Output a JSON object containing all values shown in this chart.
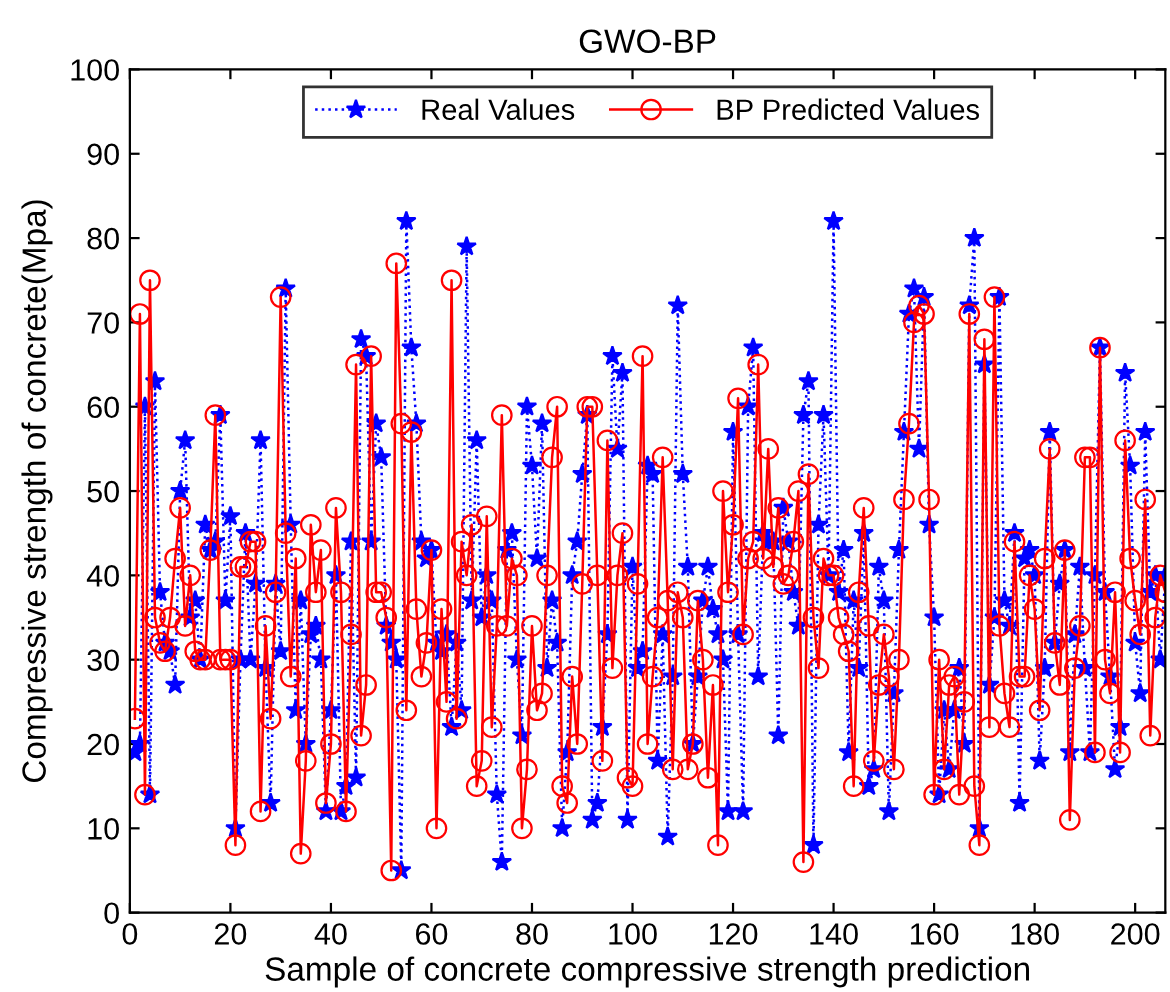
{
  "chart_data": {
    "type": "line",
    "title": "GWO-BP",
    "xlabel": "Sample of concrete compressive strength prediction",
    "ylabel": "Compressive strength of concrete(Mpa)",
    "x": [
      1,
      2,
      3,
      4,
      5,
      6,
      7,
      8,
      9,
      10,
      11,
      12,
      13,
      14,
      15,
      16,
      17,
      18,
      19,
      20,
      21,
      22,
      23,
      24,
      25,
      26,
      27,
      28,
      29,
      30,
      31,
      32,
      33,
      34,
      35,
      36,
      37,
      38,
      39,
      40,
      41,
      42,
      43,
      44,
      45,
      46,
      47,
      48,
      49,
      50,
      51,
      52,
      53,
      54,
      55,
      56,
      57,
      58,
      59,
      60,
      61,
      62,
      63,
      64,
      65,
      66,
      67,
      68,
      69,
      70,
      71,
      72,
      73,
      74,
      75,
      76,
      77,
      78,
      79,
      80,
      81,
      82,
      83,
      84,
      85,
      86,
      87,
      88,
      89,
      90,
      91,
      92,
      93,
      94,
      95,
      96,
      97,
      98,
      99,
      100,
      101,
      102,
      103,
      104,
      105,
      106,
      107,
      108,
      109,
      110,
      111,
      112,
      113,
      114,
      115,
      116,
      117,
      118,
      119,
      120,
      121,
      122,
      123,
      124,
      125,
      126,
      127,
      128,
      129,
      130,
      131,
      132,
      133,
      134,
      135,
      136,
      137,
      138,
      139,
      140,
      141,
      142,
      143,
      144,
      145,
      146,
      147,
      148,
      149,
      150,
      151,
      152,
      153,
      154,
      155,
      156,
      157,
      158,
      159,
      160,
      161,
      162,
      163,
      164,
      165,
      166,
      167,
      168,
      169,
      170,
      171,
      172,
      173,
      174,
      175,
      176,
      177,
      178,
      179,
      180,
      181,
      182,
      183,
      184,
      185,
      186,
      187,
      188,
      189,
      190,
      191,
      192,
      193,
      194,
      195,
      196,
      197,
      198,
      199,
      200,
      201,
      202,
      203,
      204,
      205,
      206
    ],
    "series": [
      {
        "name": "Real Values",
        "color": "#0000ff",
        "marker": "star",
        "line_style": "dotted",
        "values": [
          19,
          20,
          60,
          14,
          63,
          38,
          32,
          31,
          27,
          50,
          56,
          35,
          37,
          30,
          46,
          43,
          44,
          59,
          37,
          47,
          10,
          30,
          45,
          30,
          39,
          56,
          29,
          13,
          39,
          31,
          74,
          46,
          24,
          37,
          20,
          33,
          34,
          30,
          12,
          24,
          40,
          12,
          15,
          44,
          16,
          68,
          66,
          44,
          58,
          54,
          34,
          32,
          30,
          5,
          82,
          67,
          58,
          44,
          42,
          43,
          32,
          31,
          33,
          22,
          32,
          24,
          79,
          37,
          56,
          35,
          40,
          37,
          14,
          6,
          43,
          45,
          30,
          21,
          60,
          53,
          42,
          58,
          29,
          37,
          32,
          10,
          19,
          40,
          44,
          52,
          59,
          11,
          13,
          22,
          33,
          66,
          55,
          64,
          11,
          41,
          29,
          31,
          53,
          52,
          18,
          33,
          9,
          28,
          72,
          52,
          41,
          20,
          28,
          37,
          41,
          36,
          33,
          30,
          12,
          57,
          33,
          12,
          60,
          67,
          28,
          45,
          44,
          44,
          21,
          48,
          44,
          38,
          34,
          59,
          63,
          8,
          46,
          59,
          40,
          82,
          38,
          43,
          19,
          37,
          29,
          45,
          15,
          17,
          41,
          37,
          12,
          26,
          43,
          57,
          71,
          74,
          55,
          73,
          46,
          35,
          14,
          24,
          17,
          24,
          29,
          20,
          72,
          80,
          10,
          65,
          27,
          35,
          73,
          37,
          34,
          45,
          13,
          42,
          43,
          40,
          18,
          29,
          57,
          32,
          39,
          43,
          19,
          33,
          41,
          29,
          19,
          40,
          67,
          38,
          28,
          17,
          22,
          64,
          53,
          32,
          26,
          57,
          38,
          40,
          30,
          40
        ]
      },
      {
        "name": "BP Predicted Values",
        "color": "#ff0000",
        "marker": "circle",
        "line_style": "solid",
        "values": [
          23,
          71,
          14,
          75,
          35,
          32,
          31,
          35,
          42,
          48,
          34,
          40,
          31,
          30,
          30,
          43,
          59,
          30,
          30,
          30,
          8,
          41,
          41,
          44,
          44,
          12,
          34,
          23,
          38,
          73,
          45,
          28,
          42,
          7,
          18,
          46,
          38,
          43,
          13,
          20,
          48,
          38,
          12,
          33,
          65,
          21,
          27,
          66,
          38,
          38,
          35,
          5,
          77,
          58,
          24,
          57,
          36,
          28,
          32,
          43,
          10,
          36,
          25,
          75,
          23,
          44,
          40,
          46,
          15,
          18,
          47,
          22,
          34,
          59,
          34,
          42,
          40,
          10,
          17,
          34,
          24,
          26,
          40,
          54,
          60,
          15,
          13,
          28,
          20,
          39,
          60,
          60,
          40,
          18,
          56,
          29,
          40,
          45,
          16,
          15,
          39,
          66,
          20,
          28,
          35,
          54,
          37,
          17,
          38,
          35,
          17,
          20,
          37,
          30,
          16,
          27,
          8,
          50,
          38,
          46,
          61,
          33,
          42,
          44,
          65,
          42,
          55,
          41,
          48,
          39,
          40,
          44,
          50,
          6,
          52,
          35,
          29,
          42,
          40,
          40,
          35,
          33,
          31,
          15,
          38,
          48,
          34,
          18,
          27,
          33,
          28,
          17,
          30,
          49,
          58,
          70,
          72,
          71,
          49,
          14,
          30,
          17,
          27,
          28,
          14,
          25,
          71,
          15,
          8,
          68,
          22,
          73,
          34,
          26,
          22,
          44,
          28,
          28,
          40,
          36,
          24,
          42,
          55,
          32,
          27,
          43,
          11,
          29,
          34,
          54,
          54,
          19,
          67,
          30,
          26,
          38,
          19,
          56,
          42,
          37,
          33,
          49,
          21,
          35,
          40,
          38
        ]
      }
    ],
    "xlim": [
      0,
      206
    ],
    "xticks": [
      0,
      20,
      40,
      60,
      80,
      100,
      120,
      140,
      160,
      180,
      200
    ],
    "ylim": [
      0,
      100
    ],
    "yticks": [
      0,
      10,
      20,
      30,
      40,
      50,
      60,
      70,
      80,
      90,
      100
    ],
    "grid": false,
    "legend": "top"
  }
}
